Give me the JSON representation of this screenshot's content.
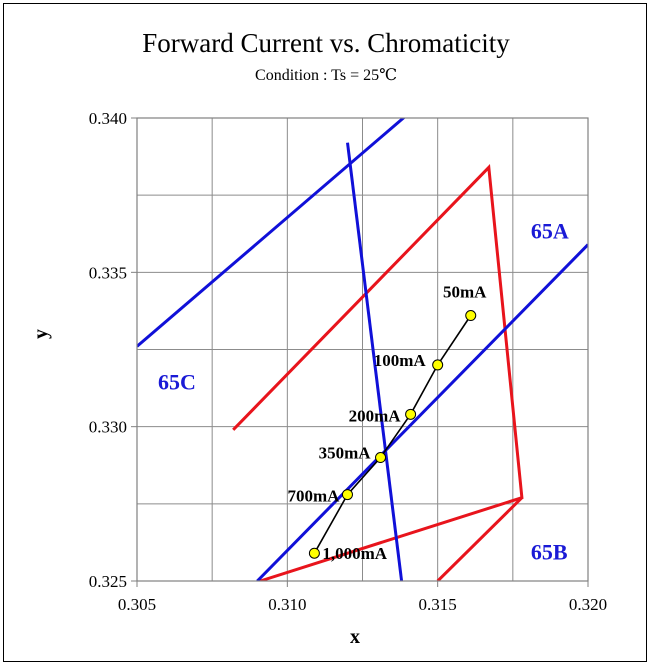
{
  "chart_data": {
    "type": "scatter",
    "title": "Forward Current vs. Chromaticity",
    "subtitle": "Condition : Ts = 25℃",
    "xlabel": "x",
    "ylabel": "y",
    "xlim": [
      0.305,
      0.32
    ],
    "ylim": [
      0.325,
      0.34
    ],
    "xticks": [
      "0.305",
      "0.310",
      "0.315",
      "0.320"
    ],
    "yticks": [
      "0.325",
      "0.330",
      "0.335",
      "0.340"
    ],
    "grid": true,
    "bins": [
      {
        "name": "65A",
        "color": "#e8141c",
        "points": [
          [
            0.3082,
            0.3299
          ],
          [
            0.3167,
            0.3384
          ],
          [
            0.3178,
            0.3277
          ],
          [
            0.3091,
            0.325
          ]
        ]
      },
      {
        "name": "65B",
        "color": "#e8141c",
        "points": [
          [
            0.3178,
            0.3277
          ],
          [
            0.315,
            0.325
          ]
        ]
      }
    ],
    "blue_lines": [
      {
        "color": "#1010d8",
        "points": [
          [
            0.305,
            0.3326
          ],
          [
            0.3141,
            0.3402
          ]
        ]
      },
      {
        "color": "#1010d8",
        "points": [
          [
            0.309,
            0.325
          ],
          [
            0.32,
            0.3359
          ]
        ]
      },
      {
        "color": "#1010d8",
        "points": [
          [
            0.312,
            0.3392
          ],
          [
            0.3138,
            0.325
          ]
        ]
      }
    ],
    "bin_labels": [
      {
        "text": "65A",
        "x": 0.3181,
        "y": 0.3361
      },
      {
        "text": "65B",
        "x": 0.3181,
        "y": 0.3257
      },
      {
        "text": "65C",
        "x": 0.3057,
        "y": 0.3312
      }
    ],
    "series": [
      {
        "color": "#ffff00",
        "points": [
          {
            "label": "1,000mA",
            "x": 0.3109,
            "y": 0.3259
          },
          {
            "label": "700mA",
            "x": 0.312,
            "y": 0.3278
          },
          {
            "label": "350mA",
            "x": 0.3131,
            "y": 0.329
          },
          {
            "label": "200mA",
            "x": 0.3141,
            "y": 0.3304
          },
          {
            "label": "100mA",
            "x": 0.315,
            "y": 0.332
          },
          {
            "label": "50mA",
            "x": 0.3161,
            "y": 0.3336
          }
        ]
      }
    ]
  }
}
